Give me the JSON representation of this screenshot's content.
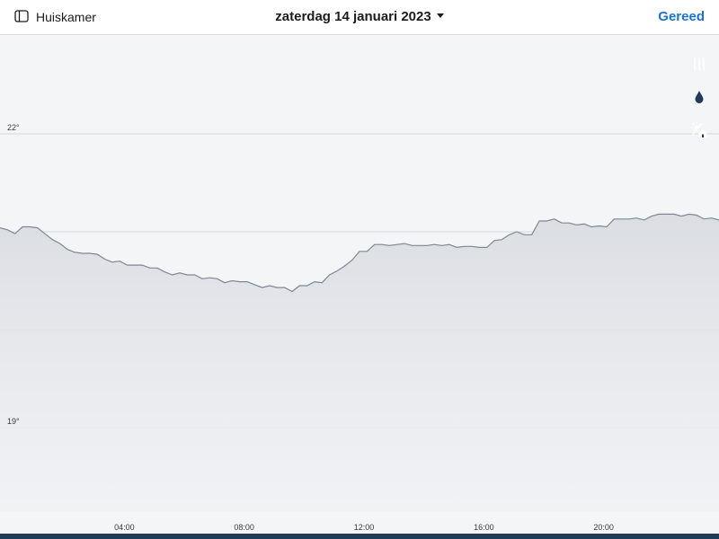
{
  "header": {
    "room_label": "Huiskamer",
    "date_label": "zaterdag 14 januari 2023",
    "done_label": "Gereed"
  },
  "colors": {
    "accent": "#1a73d9",
    "active_button": "#1f3b5a",
    "inactive_button": "#dfe1e5",
    "line": "#7d8794"
  },
  "side_buttons": [
    {
      "icon": "heating-icon",
      "active": true
    },
    {
      "icon": "humidity-drop-icon",
      "active": false
    },
    {
      "icon": "outdoor-sun-house-icon",
      "active": true
    }
  ],
  "chart_data": {
    "type": "area",
    "title": "",
    "xlabel": "",
    "ylabel": "",
    "unit": "°",
    "x_ticks": [
      "04:00",
      "08:00",
      "12:00",
      "16:00",
      "20:00"
    ],
    "y_ticks": [
      "22°",
      "19°"
    ],
    "x_range_hours": [
      0,
      24
    ],
    "ylim": [
      18.0,
      23.0
    ],
    "grid": true,
    "series": [
      {
        "x": [
          0,
          0.25,
          0.5,
          0.75,
          1,
          1.25,
          1.5,
          1.75,
          2,
          2.25,
          2.5,
          2.75,
          3,
          3.25,
          3.5,
          3.75,
          4,
          4.25,
          4.5,
          4.75,
          5,
          5.25,
          5.5,
          5.75,
          6,
          6.25,
          6.5,
          6.75,
          7,
          7.25,
          7.5,
          7.75,
          8,
          8.25,
          8.5,
          8.75,
          9,
          9.25,
          9.5,
          9.75,
          10,
          10.25,
          10.5,
          10.75,
          11,
          11.25,
          11.5,
          11.75,
          12,
          12.25,
          12.5,
          12.75,
          13,
          13.25,
          13.5,
          13.75,
          14,
          14.25,
          14.5,
          14.75,
          15,
          15.25,
          15.5,
          15.75,
          16,
          16.25,
          16.5,
          16.75,
          17,
          17.25,
          17.5,
          17.75,
          18,
          18.25,
          18.5,
          18.75,
          19,
          19.25,
          19.5,
          19.75,
          20,
          20.25,
          20.5,
          20.75,
          21,
          21.25,
          21.5,
          21.75,
          22,
          22.25,
          22.5,
          22.75,
          23,
          23.25,
          23.5,
          23.75,
          24
        ],
        "y": [
          21.04,
          21.02,
          20.98,
          21.05,
          21.05,
          21.04,
          20.98,
          20.92,
          20.88,
          20.82,
          20.79,
          20.78,
          20.78,
          20.77,
          20.72,
          20.69,
          20.7,
          20.66,
          20.66,
          20.66,
          20.63,
          20.63,
          20.59,
          20.56,
          20.58,
          20.56,
          20.56,
          20.52,
          20.53,
          20.52,
          20.48,
          20.5,
          20.49,
          20.49,
          20.46,
          20.43,
          20.45,
          20.43,
          20.43,
          20.39,
          20.45,
          20.45,
          20.49,
          20.48,
          20.56,
          20.6,
          20.65,
          20.71,
          20.8,
          20.8,
          20.87,
          20.87,
          20.86,
          20.87,
          20.88,
          20.86,
          20.86,
          20.86,
          20.87,
          20.86,
          20.87,
          20.84,
          20.85,
          20.85,
          20.84,
          20.84,
          20.91,
          20.92,
          20.97,
          21.0,
          20.97,
          20.97,
          21.11,
          21.11,
          21.13,
          21.09,
          21.09,
          21.07,
          21.08,
          21.05,
          21.06,
          21.05,
          21.13,
          21.13,
          21.13,
          21.14,
          21.12,
          21.16,
          21.18,
          21.18,
          21.18,
          21.16,
          21.18,
          21.17,
          21.13,
          21.14,
          21.12
        ]
      }
    ]
  }
}
